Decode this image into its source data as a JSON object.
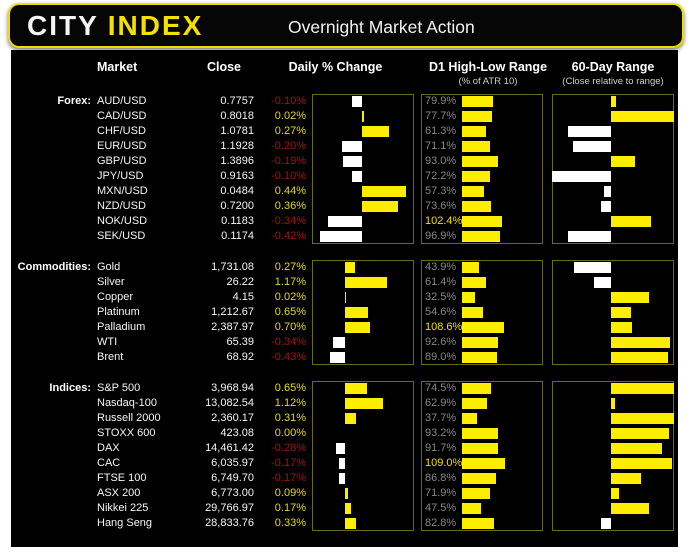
{
  "header": {
    "logo_city": "CITY",
    "logo_index": "INDEX",
    "title": "Overnight Market Action"
  },
  "columns": {
    "market": "Market",
    "close": "Close",
    "daily": "Daily % Change",
    "d1": "D1 High-Low Range",
    "d1_sub": "(% of ATR 10)",
    "range60": "60-Day Range",
    "range60_sub": "(Close relative to range)"
  },
  "colors": {
    "brand_yellow": "#f5e003",
    "bar_yellow": "#fdee00",
    "bar_white": "#ffffff",
    "positive_text": "#e6da16",
    "negative_text": "#a31212",
    "muted_text": "#878787",
    "frame_border": "#6b6b14",
    "background": "#000000"
  },
  "chart_data": {
    "type": "table",
    "title": "Overnight Market Action",
    "column_headers": [
      "Market",
      "Close",
      "Daily % Change",
      "D1 High-Low Range (% of ATR 10)",
      "60-Day Range (Close relative to range)"
    ],
    "notes": "daily_pct drawn as diverging bar (yellow positive, white negative) on daily_axis; d1_atr_pct drawn as yellow bar scaled 0-109%; range60 is close position relative to 60-day range midpoint, -1..1",
    "sections": [
      {
        "label": "Forex:",
        "daily_axis": {
          "min": -0.5,
          "max": 0.52
        },
        "rows": [
          {
            "market": "AUD/USD",
            "close": "0.7757",
            "daily_pct": -0.1,
            "daily_label": "-0.10%",
            "d1_atr_pct": 79.9,
            "d1_label": "79.9%",
            "range60": 0.08
          },
          {
            "market": "CAD/USD",
            "close": "0.8018",
            "daily_pct": 0.02,
            "daily_label": "0.02%",
            "d1_atr_pct": 77.7,
            "d1_label": "77.7%",
            "range60": 1.0
          },
          {
            "market": "CHF/USD",
            "close": "1.0781",
            "daily_pct": 0.27,
            "daily_label": "0.27%",
            "d1_atr_pct": 61.3,
            "d1_label": "61.3%",
            "range60": -0.72
          },
          {
            "market": "EUR/USD",
            "close": "1.1928",
            "daily_pct": -0.2,
            "daily_label": "-0.20%",
            "d1_atr_pct": 71.1,
            "d1_label": "71.1%",
            "range60": -0.65
          },
          {
            "market": "GBP/USD",
            "close": "1.3896",
            "daily_pct": -0.19,
            "daily_label": "-0.19%",
            "d1_atr_pct": 93.0,
            "d1_label": "93.0%",
            "range60": 0.39
          },
          {
            "market": "JPY/USD",
            "close": "0.9163",
            "daily_pct": -0.1,
            "daily_label": "-0.10%",
            "d1_atr_pct": 72.2,
            "d1_label": "72.2%",
            "range60": -1.0
          },
          {
            "market": "MXN/USD",
            "close": "0.0484",
            "daily_pct": 0.44,
            "daily_label": "0.44%",
            "d1_atr_pct": 57.3,
            "d1_label": "57.3%",
            "range60": -0.12
          },
          {
            "market": "NZD/USD",
            "close": "0.7200",
            "daily_pct": 0.36,
            "daily_label": "0.36%",
            "d1_atr_pct": 73.6,
            "d1_label": "73.6%",
            "range60": -0.17
          },
          {
            "market": "NOK/USD",
            "close": "0.1183",
            "daily_pct": -0.34,
            "daily_label": "-0.34%",
            "d1_atr_pct": 102.4,
            "d1_label": "102.4%",
            "range60": 0.64
          },
          {
            "market": "SEK/USD",
            "close": "0.1174",
            "daily_pct": -0.42,
            "daily_label": "-0.42%",
            "d1_atr_pct": 96.9,
            "d1_label": "96.9%",
            "range60": -0.72
          }
        ]
      },
      {
        "label": "Commodities:",
        "daily_axis": {
          "min": -0.93,
          "max": 1.94
        },
        "rows": [
          {
            "market": "Gold",
            "close": "1,731.08",
            "daily_pct": 0.27,
            "daily_label": "0.27%",
            "d1_atr_pct": 43.9,
            "d1_label": "43.9%",
            "range60": -0.62
          },
          {
            "market": "Silver",
            "close": "26.22",
            "daily_pct": 1.17,
            "daily_label": "1.17%",
            "d1_atr_pct": 61.4,
            "d1_label": "61.4%",
            "range60": -0.29
          },
          {
            "market": "Copper",
            "close": "4.15",
            "daily_pct": 0.02,
            "daily_label": "0.02%",
            "d1_atr_pct": 32.5,
            "d1_label": "32.5%",
            "range60": 0.61
          },
          {
            "market": "Platinum",
            "close": "1,212.67",
            "daily_pct": 0.65,
            "daily_label": "0.65%",
            "d1_atr_pct": 54.6,
            "d1_label": "54.6%",
            "range60": 0.32
          },
          {
            "market": "Palladium",
            "close": "2,387.97",
            "daily_pct": 0.7,
            "daily_label": "0.70%",
            "d1_atr_pct": 108.6,
            "d1_label": "108.6%",
            "range60": 0.34
          },
          {
            "market": "WTI",
            "close": "65.39",
            "daily_pct": -0.34,
            "daily_label": "-0.34%",
            "d1_atr_pct": 92.6,
            "d1_label": "92.6%",
            "range60": 0.95
          },
          {
            "market": "Brent",
            "close": "68.92",
            "daily_pct": -0.43,
            "daily_label": "-0.43%",
            "d1_atr_pct": 89.0,
            "d1_label": "89.0%",
            "range60": 0.91
          }
        ]
      },
      {
        "label": "Indices:",
        "daily_axis": {
          "min": -0.97,
          "max": 2.03
        },
        "rows": [
          {
            "market": "S&P 500",
            "close": "3,968.94",
            "daily_pct": 0.65,
            "daily_label": "0.65%",
            "d1_atr_pct": 74.5,
            "d1_label": "74.5%",
            "range60": 1.0
          },
          {
            "market": "Nasdaq-100",
            "close": "13,082.54",
            "daily_pct": 1.12,
            "daily_label": "1.12%",
            "d1_atr_pct": 62.9,
            "d1_label": "62.9%",
            "range60": 0.07
          },
          {
            "market": "Russell 2000",
            "close": "2,360.17",
            "daily_pct": 0.31,
            "daily_label": "0.31%",
            "d1_atr_pct": 37.7,
            "d1_label": "37.7%",
            "range60": 1.0
          },
          {
            "market": "STOXX 600",
            "close": "423.08",
            "daily_pct": 0.0,
            "daily_label": "0.00%",
            "d1_atr_pct": 93.2,
            "d1_label": "93.2%",
            "range60": 0.93
          },
          {
            "market": "DAX",
            "close": "14,461.42",
            "daily_pct": -0.28,
            "daily_label": "-0.28%",
            "d1_atr_pct": 91.7,
            "d1_label": "91.7%",
            "range60": 0.81
          },
          {
            "market": "CAC",
            "close": "6,035.97",
            "daily_pct": -0.17,
            "daily_label": "-0.17%",
            "d1_atr_pct": 109.0,
            "d1_label": "109.0%",
            "range60": 0.97
          },
          {
            "market": "FTSE 100",
            "close": "6,749.70",
            "daily_pct": -0.17,
            "daily_label": "-0.17%",
            "d1_atr_pct": 86.8,
            "d1_label": "86.8%",
            "range60": 0.48
          },
          {
            "market": "ASX 200",
            "close": "6,773.00",
            "daily_pct": 0.09,
            "daily_label": "0.09%",
            "d1_atr_pct": 71.9,
            "d1_label": "71.9%",
            "range60": 0.13
          },
          {
            "market": "Nikkei 225",
            "close": "29,766.97",
            "daily_pct": 0.17,
            "daily_label": "0.17%",
            "d1_atr_pct": 47.5,
            "d1_label": "47.5%",
            "range60": 0.61
          },
          {
            "market": "Hang Seng",
            "close": "28,833.76",
            "daily_pct": 0.33,
            "daily_label": "0.33%",
            "d1_atr_pct": 82.8,
            "d1_label": "82.8%",
            "range60": -0.16
          }
        ]
      }
    ]
  }
}
